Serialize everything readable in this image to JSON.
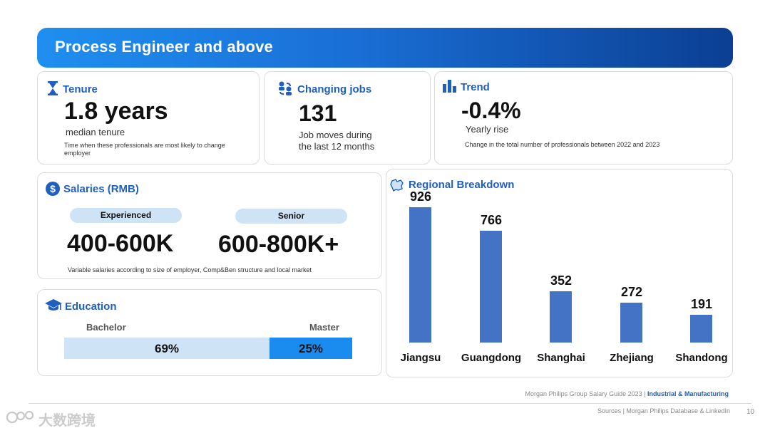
{
  "banner": {
    "title": "Process Engineer and above"
  },
  "tenure": {
    "title": "Tenure",
    "value": "1.8 years",
    "label": "median tenure",
    "note": "Time when these professionals are most likely to  change employer"
  },
  "changing_jobs": {
    "title": "Changing jobs",
    "value": "131",
    "label_line1": "Job moves during",
    "label_line2": "the last 12 months"
  },
  "trend": {
    "title": "Trend",
    "value": "-0.4%",
    "label": "Yearly rise",
    "note": "Change in the total number of professionals between 2022 and 2023"
  },
  "salaries": {
    "title": "Salaries (RMB)",
    "experienced_label": "Experienced",
    "experienced_value": "400-600K",
    "senior_label": "Senior",
    "senior_value": "600-800K+",
    "note": "Variable salaries according to size of employer, Comp&Ben structure and local market"
  },
  "education": {
    "title": "Education",
    "bachelor_label": "Bachelor",
    "master_label": "Master",
    "bachelor_pct": "69%",
    "master_pct": "25%",
    "bachelor_value": 69,
    "master_value": 25,
    "bachelor_color": "#cfe3f7",
    "master_color": "#1a8cf0"
  },
  "regional": {
    "title": "Regional Breakdown"
  },
  "chart_data": {
    "type": "bar",
    "categories": [
      "Jiangsu",
      "Guangdong",
      "Shanghai",
      "Zhejiang",
      "Shandong"
    ],
    "values": [
      926,
      766,
      352,
      272,
      191
    ],
    "value_labels": [
      "926",
      "766",
      "352",
      "272",
      "191"
    ],
    "ylim": [
      0,
      926
    ],
    "bar_color": "#4472c4"
  },
  "footer": {
    "guide": "Morgan Philips Group Salary Guide 2023 | ",
    "guide_highlight": "Industrial & Manufacturing",
    "sources": "Sources | Morgan Philips Database & LinkedIn",
    "page_number": "10",
    "watermark": "大数跨境"
  },
  "colors": {
    "accent": "#1f5fbf",
    "bar": "#4472c4"
  }
}
